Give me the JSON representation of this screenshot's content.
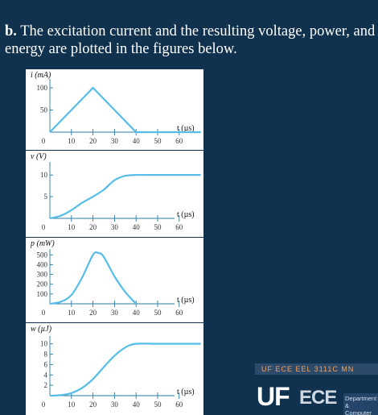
{
  "slide": {
    "label": "b.",
    "text": "The excitation current and the resulting voltage, power, and energy are plotted in the figures below."
  },
  "plots": [
    {
      "id": "current",
      "ylabel": "i (mA)",
      "yticks": [
        50,
        100
      ],
      "ymax": 120,
      "x_unit": "t (µs)",
      "xticks": [
        0,
        10,
        20,
        30,
        40,
        50,
        60
      ],
      "xlabels": [
        "0",
        "10",
        "20",
        "30",
        "40",
        "50",
        "60"
      ],
      "x": [
        0,
        10,
        20,
        30,
        40,
        70
      ],
      "y": [
        0,
        50,
        100,
        50,
        0,
        0
      ]
    },
    {
      "id": "voltage",
      "ylabel": "v (V)",
      "yticks": [
        5,
        10
      ],
      "ymax": 13,
      "x_unit": "t (µs)",
      "xticks": [
        0,
        10,
        20,
        30,
        40,
        50,
        60
      ],
      "xlabels": [
        "0",
        "10",
        "20",
        "30",
        "40",
        "50",
        "60"
      ],
      "x": [
        0,
        5,
        10,
        15,
        20,
        25,
        30,
        35,
        40,
        50,
        60,
        70
      ],
      "y": [
        0,
        0.6,
        1.9,
        3.6,
        5.0,
        6.6,
        8.8,
        9.8,
        10,
        10,
        10,
        10
      ]
    },
    {
      "id": "power",
      "ylabel": "p (mW)",
      "yticks": [
        100,
        200,
        300,
        400,
        500
      ],
      "ymax": 560,
      "x_unit": "t (µs)",
      "xticks": [
        0,
        10,
        20,
        30,
        40,
        50,
        60
      ],
      "xlabels": [
        "0",
        "10",
        "20",
        "30",
        "40",
        "50",
        "60"
      ],
      "x": [
        0,
        5,
        10,
        15,
        20,
        22.5,
        25,
        30,
        35,
        40
      ],
      "y": [
        0,
        20,
        90,
        270,
        500,
        520,
        480,
        280,
        120,
        0
      ]
    },
    {
      "id": "energy",
      "ylabel": "w (µJ)",
      "yticks": [
        2,
        4,
        6,
        8,
        10
      ],
      "ymax": 11.5,
      "x_unit": "t (µs)",
      "xticks": [
        0,
        10,
        20,
        30,
        40,
        50,
        60
      ],
      "xlabels": [
        "0",
        "10",
        "20",
        "30",
        "40",
        "50",
        "60"
      ],
      "x": [
        0,
        5,
        10,
        15,
        20,
        25,
        30,
        35,
        40,
        50,
        60,
        70
      ],
      "y": [
        0,
        0.1,
        0.5,
        1.5,
        3.2,
        5.5,
        7.7,
        9.3,
        10,
        10,
        10,
        10
      ]
    }
  ],
  "chart_data": [
    {
      "type": "line",
      "ylabel": "i (mA)",
      "xlabel": "t (µs)",
      "x": [
        0,
        20,
        40,
        60
      ],
      "values": [
        0,
        100,
        0,
        0
      ]
    },
    {
      "type": "line",
      "ylabel": "v (V)",
      "xlabel": "t (µs)",
      "x": [
        0,
        10,
        20,
        30,
        40,
        60
      ],
      "values": [
        0,
        1.9,
        5.0,
        8.8,
        10,
        10
      ]
    },
    {
      "type": "line",
      "ylabel": "p (mW)",
      "xlabel": "t (µs)",
      "x": [
        0,
        10,
        20,
        30,
        40
      ],
      "values": [
        0,
        90,
        500,
        280,
        0
      ]
    },
    {
      "type": "line",
      "ylabel": "w (µJ)",
      "xlabel": "t (µs)",
      "x": [
        0,
        10,
        20,
        30,
        40,
        60
      ],
      "values": [
        0,
        0.5,
        3.2,
        7.7,
        10,
        10
      ]
    }
  ],
  "footer": {
    "banner": "UF ECE EEL 3111C MN",
    "logo_uf": "UF",
    "logo_ece": "ECE",
    "dept": "Department & Computer"
  }
}
